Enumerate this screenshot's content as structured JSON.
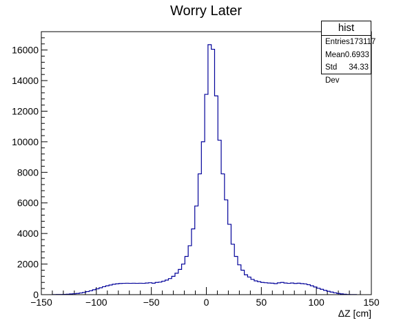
{
  "chart_data": {
    "type": "histogram",
    "title": "Worry Later",
    "xlabel": "ΔZ [cm]",
    "ylabel": "",
    "xlim": [
      -150,
      150
    ],
    "ylim": [
      0,
      17200
    ],
    "xticks": [
      -150,
      -100,
      -50,
      0,
      50,
      100,
      150
    ],
    "yticks": [
      0,
      2000,
      4000,
      6000,
      8000,
      10000,
      12000,
      14000,
      16000
    ],
    "bin_width": 3,
    "line_color": "#000099",
    "bins": [
      {
        "x": -138,
        "y": 5
      },
      {
        "x": -135,
        "y": 10
      },
      {
        "x": -132,
        "y": 15
      },
      {
        "x": -129,
        "y": 20
      },
      {
        "x": -126,
        "y": 30
      },
      {
        "x": -123,
        "y": 45
      },
      {
        "x": -120,
        "y": 60
      },
      {
        "x": -117,
        "y": 80
      },
      {
        "x": -114,
        "y": 110
      },
      {
        "x": -111,
        "y": 150
      },
      {
        "x": -108,
        "y": 200
      },
      {
        "x": -105,
        "y": 250
      },
      {
        "x": -102,
        "y": 320
      },
      {
        "x": -99,
        "y": 380
      },
      {
        "x": -96,
        "y": 450
      },
      {
        "x": -93,
        "y": 520
      },
      {
        "x": -90,
        "y": 580
      },
      {
        "x": -87,
        "y": 630
      },
      {
        "x": -84,
        "y": 680
      },
      {
        "x": -81,
        "y": 710
      },
      {
        "x": -78,
        "y": 730
      },
      {
        "x": -75,
        "y": 740
      },
      {
        "x": -72,
        "y": 745
      },
      {
        "x": -69,
        "y": 740
      },
      {
        "x": -66,
        "y": 745
      },
      {
        "x": -63,
        "y": 740
      },
      {
        "x": -60,
        "y": 745
      },
      {
        "x": -57,
        "y": 740
      },
      {
        "x": -54,
        "y": 760
      },
      {
        "x": -51,
        "y": 780
      },
      {
        "x": -48,
        "y": 750
      },
      {
        "x": -45,
        "y": 800
      },
      {
        "x": -42,
        "y": 820
      },
      {
        "x": -39,
        "y": 880
      },
      {
        "x": -36,
        "y": 950
      },
      {
        "x": -33,
        "y": 1050
      },
      {
        "x": -30,
        "y": 1200
      },
      {
        "x": -27,
        "y": 1400
      },
      {
        "x": -24,
        "y": 1650
      },
      {
        "x": -21,
        "y": 2000
      },
      {
        "x": -18,
        "y": 2500
      },
      {
        "x": -15,
        "y": 3200
      },
      {
        "x": -12,
        "y": 4300
      },
      {
        "x": -9,
        "y": 5800
      },
      {
        "x": -6,
        "y": 7900
      },
      {
        "x": -3,
        "y": 10000
      },
      {
        "x": 0,
        "y": 13100
      },
      {
        "x": 3,
        "y": 16350
      },
      {
        "x": 6,
        "y": 16050
      },
      {
        "x": 9,
        "y": 13000
      },
      {
        "x": 12,
        "y": 10100
      },
      {
        "x": 15,
        "y": 7900
      },
      {
        "x": 18,
        "y": 6200
      },
      {
        "x": 21,
        "y": 4600
      },
      {
        "x": 24,
        "y": 3300
      },
      {
        "x": 27,
        "y": 2500
      },
      {
        "x": 30,
        "y": 1950
      },
      {
        "x": 33,
        "y": 1600
      },
      {
        "x": 36,
        "y": 1300
      },
      {
        "x": 39,
        "y": 1150
      },
      {
        "x": 42,
        "y": 1000
      },
      {
        "x": 45,
        "y": 900
      },
      {
        "x": 48,
        "y": 850
      },
      {
        "x": 51,
        "y": 800
      },
      {
        "x": 54,
        "y": 780
      },
      {
        "x": 57,
        "y": 760
      },
      {
        "x": 60,
        "y": 750
      },
      {
        "x": 63,
        "y": 720
      },
      {
        "x": 66,
        "y": 770
      },
      {
        "x": 69,
        "y": 800
      },
      {
        "x": 72,
        "y": 760
      },
      {
        "x": 75,
        "y": 740
      },
      {
        "x": 78,
        "y": 760
      },
      {
        "x": 81,
        "y": 730
      },
      {
        "x": 84,
        "y": 750
      },
      {
        "x": 87,
        "y": 720
      },
      {
        "x": 90,
        "y": 700
      },
      {
        "x": 93,
        "y": 650
      },
      {
        "x": 96,
        "y": 580
      },
      {
        "x": 99,
        "y": 500
      },
      {
        "x": 102,
        "y": 420
      },
      {
        "x": 105,
        "y": 350
      },
      {
        "x": 108,
        "y": 280
      },
      {
        "x": 111,
        "y": 220
      },
      {
        "x": 114,
        "y": 170
      },
      {
        "x": 117,
        "y": 120
      },
      {
        "x": 120,
        "y": 80
      },
      {
        "x": 123,
        "y": 50
      },
      {
        "x": 126,
        "y": 30
      },
      {
        "x": 129,
        "y": 15
      },
      {
        "x": 132,
        "y": 8
      },
      {
        "x": 135,
        "y": 4
      }
    ],
    "stats": {
      "title": "hist",
      "rows": [
        {
          "label": "Entries",
          "value": "173117"
        },
        {
          "label": "Mean",
          "value": "0.6933"
        },
        {
          "label": "Std Dev",
          "value": "34.33"
        }
      ]
    }
  }
}
